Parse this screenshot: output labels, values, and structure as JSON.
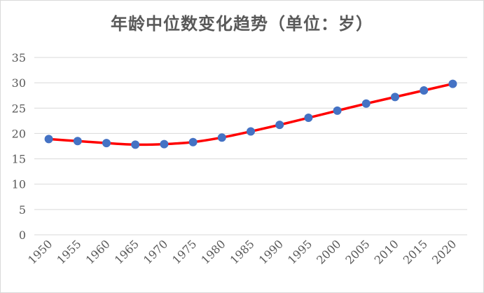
{
  "chart_data": {
    "type": "line",
    "title": "年龄中位数变化趋势（单位：岁）",
    "xlabel": "",
    "ylabel": "",
    "x": [
      "1950",
      "1955",
      "1960",
      "1965",
      "1970",
      "1975",
      "1980",
      "1985",
      "1990",
      "1995",
      "2000",
      "2005",
      "2010",
      "2015",
      "2020"
    ],
    "series": [
      {
        "values": [
          18.9,
          18.5,
          18.1,
          17.8,
          17.9,
          18.3,
          19.2,
          20.4,
          21.7,
          23.1,
          24.5,
          25.9,
          27.2,
          28.5,
          29.8
        ]
      }
    ],
    "ylim": [
      0,
      35
    ],
    "yticks": [
      "0",
      "5",
      "10",
      "15",
      "20",
      "25",
      "30",
      "35"
    ],
    "grid": true,
    "legend": "none",
    "colors": {
      "line": "#ff0000",
      "marker": "#4472c4",
      "grid": "#d9d9d9",
      "text": "#595959"
    }
  }
}
